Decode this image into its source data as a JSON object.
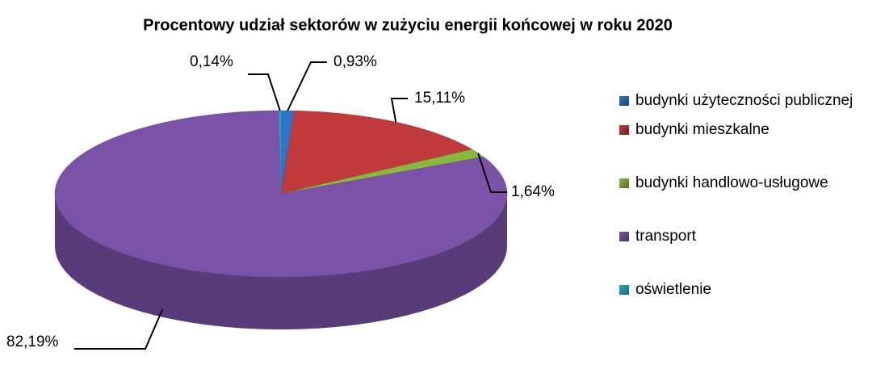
{
  "chart_data": {
    "type": "pie",
    "title": "Procentowy udział sektorów w zużyciu energii końcowej w roku 2020",
    "categories": [
      "budynki użyteczności publicznej",
      "budynki mieszkalne",
      "budynki handlowo-usługowe",
      "transport",
      "oświetlenie"
    ],
    "values": [
      0.93,
      15.11,
      1.64,
      82.19,
      0.14
    ],
    "value_labels": [
      "0,93%",
      "15,11%",
      "1,64%",
      "82,19%",
      "0,14%"
    ],
    "colors": [
      "#2e75c8",
      "#c0393b",
      "#8ab83e",
      "#7a52a8",
      "#2aa7c5"
    ],
    "legend": "right"
  }
}
